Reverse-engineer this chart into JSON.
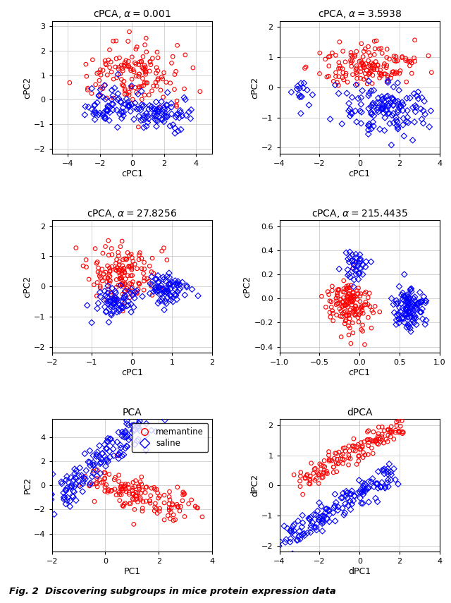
{
  "subplots": [
    {
      "title": "cPCA, $\\alpha = 0.001$",
      "xlabel": "cPC1",
      "ylabel": "cPC2",
      "xlim": [
        -5,
        5
      ],
      "ylim": [
        -2.2,
        3.2
      ],
      "xticks": [
        -4,
        -2,
        0,
        2,
        4
      ],
      "yticks": [
        -2,
        -1,
        0,
        1,
        2,
        3
      ]
    },
    {
      "title": "cPCA, $\\alpha = 3.5938$",
      "xlabel": "cPC1",
      "ylabel": "cPC2",
      "xlim": [
        -4,
        4
      ],
      "ylim": [
        -2.2,
        2.2
      ],
      "xticks": [
        -4,
        -2,
        0,
        2,
        4
      ],
      "yticks": [
        -2,
        -1,
        0,
        1,
        2
      ]
    },
    {
      "title": "cPCA, $\\alpha = 27.8256$",
      "xlabel": "cPC1",
      "ylabel": "cPC2",
      "xlim": [
        -2,
        2
      ],
      "ylim": [
        -2.2,
        2.2
      ],
      "xticks": [
        -2,
        -1,
        0,
        1,
        2
      ],
      "yticks": [
        -2,
        -1,
        0,
        1,
        2
      ]
    },
    {
      "title": "cPCA, $\\alpha = 215.4435$",
      "xlabel": "cPC1",
      "ylabel": "cPC2",
      "xlim": [
        -1,
        1
      ],
      "ylim": [
        -0.45,
        0.65
      ],
      "xticks": [
        -1,
        -0.5,
        0,
        0.5,
        1
      ],
      "yticks": [
        -0.4,
        -0.2,
        0.0,
        0.2,
        0.4,
        0.6
      ]
    },
    {
      "title": "PCA",
      "xlabel": "PC1",
      "ylabel": "PC2",
      "xlim": [
        -2,
        4
      ],
      "ylim": [
        -5.5,
        5.5
      ],
      "xticks": [
        -2,
        0,
        2,
        4
      ],
      "yticks": [
        -4,
        -2,
        0,
        2,
        4
      ]
    },
    {
      "title": "dPCA",
      "xlabel": "dPC1",
      "ylabel": "dPC2",
      "xlim": [
        -4,
        4
      ],
      "ylim": [
        -2.2,
        2.2
      ],
      "xticks": [
        -4,
        -2,
        0,
        2,
        4
      ],
      "yticks": [
        -2,
        -1,
        0,
        1,
        2
      ]
    }
  ],
  "red_color": "#FF0000",
  "blue_color": "#0000FF",
  "legend_labels": [
    "memantine",
    "saline"
  ],
  "caption": "Fig. 2  Discovering subgroups in mice protein expression data",
  "fig_width": 6.4,
  "fig_height": 8.55,
  "dpi": 100
}
